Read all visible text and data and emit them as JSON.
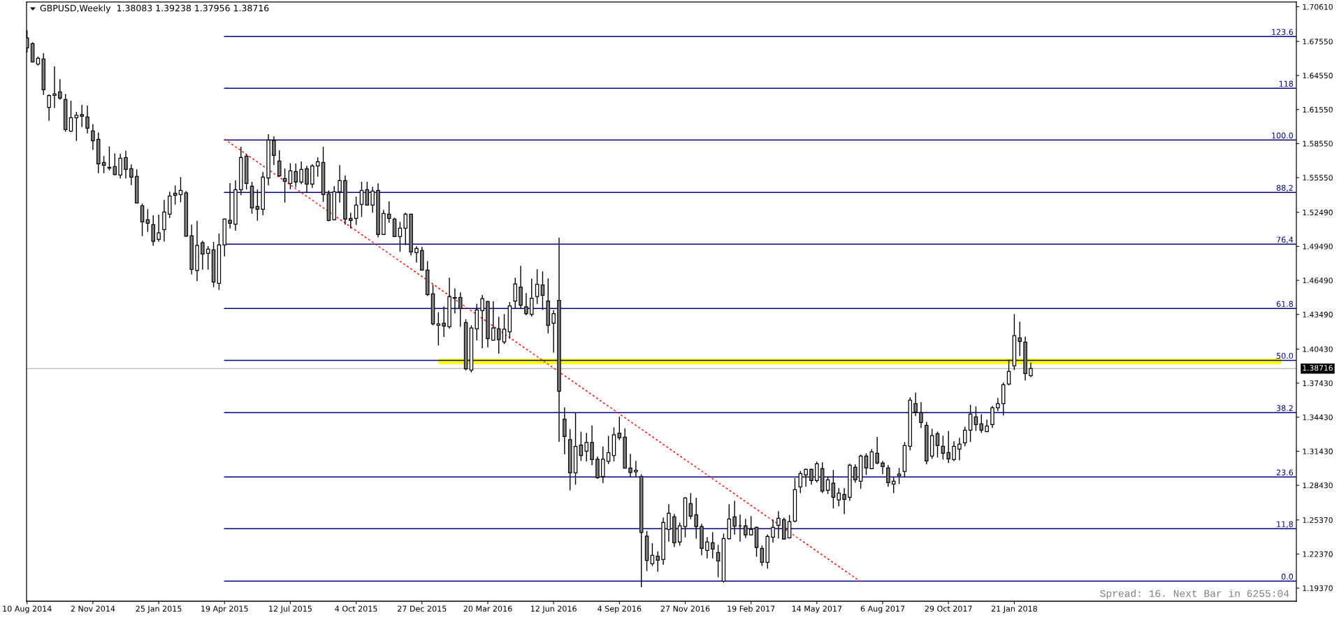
{
  "chart_data": {
    "type": "candlestick",
    "title": "GBPUSD,Weekly  1.38083 1.39238 1.37956 1.38716",
    "annotations": [
      "Spread: 16. Next Bar in 6255:04"
    ],
    "x": [
      "2014-08-10",
      "2014-08-17",
      "2014-08-24",
      "2014-08-31",
      "2014-09-07",
      "2014-09-14",
      "2014-09-21",
      "2014-09-28",
      "2014-10-05",
      "2014-10-12",
      "2014-10-19",
      "2014-10-26",
      "2014-11-02",
      "2014-11-09",
      "2014-11-16",
      "2014-11-23",
      "2014-11-30",
      "2014-12-07",
      "2014-12-14",
      "2014-12-21",
      "2014-12-28",
      "2015-01-04",
      "2015-01-11",
      "2015-01-18",
      "2015-01-25",
      "2015-02-01",
      "2015-02-08",
      "2015-02-15",
      "2015-02-22",
      "2015-03-01",
      "2015-03-08",
      "2015-03-15",
      "2015-03-22",
      "2015-03-29",
      "2015-04-05",
      "2015-04-12",
      "2015-04-19",
      "2015-04-26",
      "2015-05-03",
      "2015-05-10",
      "2015-05-17",
      "2015-05-24",
      "2015-05-31",
      "2015-06-07",
      "2015-06-14",
      "2015-06-21",
      "2015-06-28",
      "2015-07-05",
      "2015-07-12",
      "2015-07-19",
      "2015-07-26",
      "2015-08-02",
      "2015-08-09",
      "2015-08-16",
      "2015-08-23",
      "2015-08-30",
      "2015-09-06",
      "2015-09-13",
      "2015-09-20",
      "2015-09-27",
      "2015-10-04",
      "2015-10-11",
      "2015-10-18",
      "2015-10-25",
      "2015-11-01",
      "2015-11-08",
      "2015-11-15",
      "2015-11-22",
      "2015-11-29",
      "2015-12-06",
      "2015-12-13",
      "2015-12-20",
      "2015-12-27",
      "2016-01-03",
      "2016-01-10",
      "2016-01-17",
      "2016-01-24",
      "2016-01-31",
      "2016-02-07",
      "2016-02-14",
      "2016-02-21",
      "2016-02-28",
      "2016-03-06",
      "2016-03-13",
      "2016-03-20",
      "2016-03-27",
      "2016-04-03",
      "2016-04-10",
      "2016-04-17",
      "2016-04-24",
      "2016-05-01",
      "2016-05-08",
      "2016-05-15",
      "2016-05-22",
      "2016-05-29",
      "2016-06-05",
      "2016-06-12",
      "2016-06-19",
      "2016-06-26",
      "2016-07-03",
      "2016-07-10",
      "2016-07-17",
      "2016-07-24",
      "2016-07-31",
      "2016-08-07",
      "2016-08-14",
      "2016-08-21",
      "2016-08-28",
      "2016-09-04",
      "2016-09-11",
      "2016-09-18",
      "2016-09-25",
      "2016-10-02",
      "2016-10-09",
      "2016-10-16",
      "2016-10-23",
      "2016-10-30",
      "2016-11-06",
      "2016-11-13",
      "2016-11-20",
      "2016-11-27",
      "2016-12-04",
      "2016-12-11",
      "2016-12-18",
      "2016-12-25",
      "2017-01-01",
      "2017-01-08",
      "2017-01-15",
      "2017-01-22",
      "2017-01-29",
      "2017-02-05",
      "2017-02-12",
      "2017-02-19",
      "2017-02-26",
      "2017-03-05",
      "2017-03-12",
      "2017-03-19",
      "2017-03-26",
      "2017-04-02",
      "2017-04-09",
      "2017-04-16",
      "2017-04-23",
      "2017-04-30",
      "2017-05-07",
      "2017-05-14",
      "2017-05-21",
      "2017-05-28",
      "2017-06-04",
      "2017-06-11",
      "2017-06-18",
      "2017-06-25",
      "2017-07-02",
      "2017-07-09",
      "2017-07-16",
      "2017-07-23",
      "2017-07-30",
      "2017-08-06",
      "2017-08-13",
      "2017-08-20",
      "2017-08-27",
      "2017-09-03",
      "2017-09-10",
      "2017-09-17",
      "2017-09-24",
      "2017-10-01",
      "2017-10-08",
      "2017-10-15",
      "2017-10-22",
      "2017-10-29",
      "2017-11-05",
      "2017-11-12",
      "2017-11-19",
      "2017-11-26",
      "2017-12-03",
      "2017-12-10",
      "2017-12-17",
      "2017-12-24",
      "2017-12-31",
      "2018-01-07",
      "2018-01-14",
      "2018-01-21",
      "2018-01-28",
      "2018-02-04",
      "2018-02-11"
    ],
    "ohlc": [
      [
        1.6785,
        1.6853,
        1.6658,
        1.6699
      ],
      [
        1.6736,
        1.6748,
        1.657,
        1.6574
      ],
      [
        1.6555,
        1.6621,
        1.6543,
        1.6607
      ],
      [
        1.66,
        1.6652,
        1.6284,
        1.6329
      ],
      [
        1.6173,
        1.6288,
        1.6056,
        1.6278
      ],
      [
        1.628,
        1.6535,
        1.6169,
        1.6292
      ],
      [
        1.6311,
        1.6422,
        1.6241,
        1.6255
      ],
      [
        1.6243,
        1.6292,
        1.5958,
        1.5978
      ],
      [
        1.5964,
        1.6233,
        1.5958,
        1.6083
      ],
      [
        1.6083,
        1.6134,
        1.5878,
        1.6104
      ],
      [
        1.611,
        1.6196,
        1.6001,
        1.6095
      ],
      [
        1.6089,
        1.619,
        1.5945,
        1.599
      ],
      [
        1.5966,
        1.6027,
        1.5799,
        1.5879
      ],
      [
        1.5892,
        1.5953,
        1.5594,
        1.5676
      ],
      [
        1.5688,
        1.5744,
        1.5594,
        1.5664
      ],
      [
        1.5645,
        1.583,
        1.5619,
        1.5639
      ],
      [
        1.5651,
        1.5768,
        1.5575,
        1.5582
      ],
      [
        1.5577,
        1.5764,
        1.5547,
        1.5725
      ],
      [
        1.5731,
        1.5793,
        1.5547,
        1.5627
      ],
      [
        1.5633,
        1.567,
        1.5489,
        1.5559
      ],
      [
        1.5565,
        1.5627,
        1.5328,
        1.5331
      ],
      [
        1.5306,
        1.5325,
        1.5039,
        1.5165
      ],
      [
        1.5183,
        1.5278,
        1.5076,
        1.5152
      ],
      [
        1.514,
        1.5222,
        1.4955,
        1.4994
      ],
      [
        1.5011,
        1.5228,
        1.499,
        1.5068
      ],
      [
        1.5097,
        1.5358,
        1.4992,
        1.5251
      ],
      [
        1.5232,
        1.543,
        1.52,
        1.5393
      ],
      [
        1.5417,
        1.5485,
        1.5317,
        1.5399
      ],
      [
        1.5405,
        1.5559,
        1.5337,
        1.5442
      ],
      [
        1.5421,
        1.5436,
        1.5035,
        1.5039
      ],
      [
        1.5041,
        1.514,
        1.4702,
        1.4746
      ],
      [
        1.4737,
        1.5173,
        1.4641,
        1.4957
      ],
      [
        1.4982,
        1.4998,
        1.4744,
        1.4881
      ],
      [
        1.4887,
        1.4951,
        1.4744,
        1.4924
      ],
      [
        1.4918,
        1.4988,
        1.4589,
        1.4635
      ],
      [
        1.4622,
        1.5062,
        1.4565,
        1.4961
      ],
      [
        1.4961,
        1.5195,
        1.4861,
        1.5189
      ],
      [
        1.5179,
        1.5506,
        1.5107,
        1.5152
      ],
      [
        1.5144,
        1.553,
        1.5087,
        1.5448
      ],
      [
        1.5448,
        1.5826,
        1.5399,
        1.5732
      ],
      [
        1.5744,
        1.5758,
        1.545,
        1.5504
      ],
      [
        1.5479,
        1.5518,
        1.5237,
        1.5288
      ],
      [
        1.53,
        1.545,
        1.5175,
        1.5276
      ],
      [
        1.5276,
        1.5604,
        1.5224,
        1.5559
      ],
      [
        1.5551,
        1.5937,
        1.5487,
        1.5886
      ],
      [
        1.5882,
        1.5919,
        1.5666,
        1.575
      ],
      [
        1.5701,
        1.5795,
        1.5563,
        1.5569
      ],
      [
        1.5547,
        1.5635,
        1.5335,
        1.5522
      ],
      [
        1.5504,
        1.5682,
        1.5452,
        1.5615
      ],
      [
        1.5609,
        1.5678,
        1.5471,
        1.5516
      ],
      [
        1.5516,
        1.5697,
        1.5496,
        1.5627
      ],
      [
        1.5633,
        1.5658,
        1.5426,
        1.5498
      ],
      [
        1.5498,
        1.5672,
        1.5465,
        1.5658
      ],
      [
        1.5658,
        1.5734,
        1.5563,
        1.5695
      ],
      [
        1.5689,
        1.5826,
        1.5341,
        1.5405
      ],
      [
        1.5411,
        1.5442,
        1.5169,
        1.5177
      ],
      [
        1.5183,
        1.5479,
        1.5177,
        1.543
      ],
      [
        1.543,
        1.5664,
        1.5335,
        1.5528
      ],
      [
        1.5528,
        1.5574,
        1.514,
        1.519
      ],
      [
        1.5196,
        1.5245,
        1.5107,
        1.5177
      ],
      [
        1.5196,
        1.5387,
        1.5138,
        1.5313
      ],
      [
        1.5319,
        1.5518,
        1.5208,
        1.5442
      ],
      [
        1.5448,
        1.5518,
        1.5309,
        1.5313
      ],
      [
        1.5313,
        1.5473,
        1.5245,
        1.5436
      ],
      [
        1.5442,
        1.5504,
        1.5029,
        1.5054
      ],
      [
        1.5054,
        1.527,
        1.5048,
        1.5239
      ],
      [
        1.5233,
        1.5346,
        1.5157,
        1.5196
      ],
      [
        1.519,
        1.5202,
        1.5033,
        1.5035
      ],
      [
        1.5035,
        1.5165,
        1.49,
        1.5109
      ],
      [
        1.5109,
        1.5245,
        1.4959,
        1.5233
      ],
      [
        1.5233,
        1.5237,
        1.4869,
        1.49
      ],
      [
        1.4893,
        1.4949,
        1.4807,
        1.493
      ],
      [
        1.4912,
        1.4943,
        1.4737,
        1.4739
      ],
      [
        1.4739,
        1.4819,
        1.4511,
        1.4524
      ],
      [
        1.453,
        1.461,
        1.4253,
        1.4265
      ],
      [
        1.4253,
        1.4367,
        1.4076,
        1.4265
      ],
      [
        1.4271,
        1.442,
        1.415,
        1.4246
      ],
      [
        1.4241,
        1.4673,
        1.4224,
        1.4505
      ],
      [
        1.4498,
        1.4579,
        1.4356,
        1.4492
      ],
      [
        1.4498,
        1.4543,
        1.4239,
        1.4401
      ],
      [
        1.4277,
        1.4307,
        1.3855,
        1.3869
      ],
      [
        1.3859,
        1.4254,
        1.3838,
        1.4229
      ],
      [
        1.4222,
        1.4441,
        1.412,
        1.4388
      ],
      [
        1.4382,
        1.452,
        1.4052,
        1.4488
      ],
      [
        1.4462,
        1.4469,
        1.4059,
        1.4135
      ],
      [
        1.4122,
        1.4464,
        1.412,
        1.4229
      ],
      [
        1.4222,
        1.4328,
        1.4003,
        1.4127
      ],
      [
        1.4107,
        1.4352,
        1.4088,
        1.4218
      ],
      [
        1.4195,
        1.4458,
        1.4135,
        1.4424
      ],
      [
        1.4467,
        1.4673,
        1.4403,
        1.4617
      ],
      [
        1.459,
        1.4777,
        1.4405,
        1.443
      ],
      [
        1.4416,
        1.4537,
        1.4341,
        1.4356
      ],
      [
        1.435,
        1.4664,
        1.4331,
        1.4492
      ],
      [
        1.4507,
        1.4747,
        1.4441,
        1.4615
      ],
      [
        1.4609,
        1.4728,
        1.4388,
        1.4518
      ],
      [
        1.4467,
        1.4666,
        1.4182,
        1.4252
      ],
      [
        1.4271,
        1.4388,
        1.4012,
        1.4356
      ],
      [
        1.4473,
        1.5025,
        1.3226,
        1.3672
      ],
      [
        1.3426,
        1.353,
        1.3116,
        1.3273
      ],
      [
        1.3245,
        1.3338,
        1.2797,
        1.2952
      ],
      [
        1.2952,
        1.3479,
        1.2848,
        1.3185
      ],
      [
        1.3198,
        1.3315,
        1.3058,
        1.3105
      ],
      [
        1.3143,
        1.3304,
        1.3054,
        1.3221
      ],
      [
        1.3221,
        1.337,
        1.302,
        1.3069
      ],
      [
        1.3073,
        1.3096,
        1.2899,
        1.2909
      ],
      [
        1.292,
        1.3185,
        1.2862,
        1.3073
      ],
      [
        1.3054,
        1.3279,
        1.303,
        1.313
      ],
      [
        1.3105,
        1.3353,
        1.3054,
        1.3289
      ],
      [
        1.3302,
        1.3447,
        1.3241,
        1.3262
      ],
      [
        1.3266,
        1.3345,
        1.299,
        1.2994
      ],
      [
        1.2994,
        1.312,
        1.2913,
        1.2956
      ],
      [
        1.2962,
        1.3058,
        1.2913,
        1.2975
      ],
      [
        1.292,
        1.2939,
        1.1945,
        1.2427
      ],
      [
        1.2395,
        1.244,
        1.2087,
        1.2181
      ],
      [
        1.2152,
        1.2332,
        1.2131,
        1.2226
      ],
      [
        1.2217,
        1.226,
        1.2082,
        1.2182
      ],
      [
        1.2189,
        1.2559,
        1.2143,
        1.2515
      ],
      [
        1.2454,
        1.2676,
        1.2347,
        1.2596
      ],
      [
        1.2565,
        1.2589,
        1.2298,
        1.2337
      ],
      [
        1.2343,
        1.2515,
        1.231,
        1.2485
      ],
      [
        1.2479,
        1.2739,
        1.2384,
        1.2731
      ],
      [
        1.2682,
        1.2774,
        1.2544,
        1.2571
      ],
      [
        1.2583,
        1.2733,
        1.2372,
        1.2479
      ],
      [
        1.2479,
        1.2503,
        1.2226,
        1.2287
      ],
      [
        1.2269,
        1.2386,
        1.2199,
        1.2343
      ],
      [
        1.2337,
        1.2429,
        1.2199,
        1.2281
      ],
      [
        1.225,
        1.2318,
        1.2032,
        1.2176
      ],
      [
        1.1998,
        1.2417,
        1.1985,
        1.2373
      ],
      [
        1.2371,
        1.2676,
        1.2365,
        1.2546
      ],
      [
        1.2565,
        1.2707,
        1.2408,
        1.2483
      ],
      [
        1.2485,
        1.2585,
        1.2347,
        1.2485
      ],
      [
        1.2485,
        1.2546,
        1.2378,
        1.2405
      ],
      [
        1.2405,
        1.2571,
        1.2403,
        1.2454
      ],
      [
        1.2472,
        1.2479,
        1.2213,
        1.2294
      ],
      [
        1.2287,
        1.2312,
        1.2131,
        1.2164
      ],
      [
        1.2164,
        1.241,
        1.2107,
        1.2392
      ],
      [
        1.2386,
        1.254,
        1.2337,
        1.2472
      ],
      [
        1.2491,
        1.2614,
        1.2374,
        1.2552
      ],
      [
        1.254,
        1.2557,
        1.2364,
        1.2368
      ],
      [
        1.238,
        1.2581,
        1.2374,
        1.2522
      ],
      [
        1.2528,
        1.2906,
        1.2515,
        1.2805
      ],
      [
        1.283,
        1.2967,
        1.2774,
        1.2947
      ],
      [
        1.2934,
        1.299,
        1.283,
        1.2984
      ],
      [
        1.2984,
        1.299,
        1.2848,
        1.2885
      ],
      [
        1.2885,
        1.3052,
        1.2867,
        1.3033
      ],
      [
        1.299,
        1.3045,
        1.2774,
        1.2793
      ],
      [
        1.2799,
        1.2922,
        1.2766,
        1.2891
      ],
      [
        1.2861,
        1.2978,
        1.2639,
        1.2737
      ],
      [
        1.2713,
        1.2817,
        1.2657,
        1.2774
      ],
      [
        1.2762,
        1.2817,
        1.2589,
        1.2719
      ],
      [
        1.2737,
        1.3033,
        1.2707,
        1.3021
      ],
      [
        1.3002,
        1.3027,
        1.2866,
        1.2891
      ],
      [
        1.2879,
        1.3113,
        1.2811,
        1.3101
      ],
      [
        1.3101,
        1.3125,
        1.2934,
        1.2996
      ],
      [
        1.299,
        1.3162,
        1.2984,
        1.3138
      ],
      [
        1.3125,
        1.3269,
        1.3027,
        1.3039
      ],
      [
        1.3039,
        1.3057,
        1.2941,
        1.3008
      ],
      [
        1.2996,
        1.3021,
        1.283,
        1.2866
      ],
      [
        1.2854,
        1.291,
        1.2774,
        1.2879
      ],
      [
        1.2928,
        1.2996,
        1.2854,
        1.2941
      ],
      [
        1.2965,
        1.3224,
        1.291,
        1.3193
      ],
      [
        1.3187,
        1.3618,
        1.315,
        1.3594
      ],
      [
        1.3563,
        1.3661,
        1.3452,
        1.3489
      ],
      [
        1.3483,
        1.3575,
        1.3347,
        1.3396
      ],
      [
        1.3372,
        1.3402,
        1.3027,
        1.3058
      ],
      [
        1.3101,
        1.3341,
        1.3076,
        1.328
      ],
      [
        1.3298,
        1.3316,
        1.3088,
        1.3193
      ],
      [
        1.3187,
        1.328,
        1.307,
        1.3125
      ],
      [
        1.3131,
        1.3322,
        1.3039,
        1.3076
      ],
      [
        1.307,
        1.323,
        1.3057,
        1.3187
      ],
      [
        1.3162,
        1.3261,
        1.3063,
        1.3205
      ],
      [
        1.3217,
        1.3359,
        1.3187,
        1.3328
      ],
      [
        1.3328,
        1.3551,
        1.3224,
        1.347
      ],
      [
        1.3446,
        1.3538,
        1.3322,
        1.3378
      ],
      [
        1.3384,
        1.347,
        1.3304,
        1.3328
      ],
      [
        1.3316,
        1.3421,
        1.331,
        1.3365
      ],
      [
        1.3378,
        1.3544,
        1.3347,
        1.3526
      ],
      [
        1.3526,
        1.3612,
        1.3495,
        1.3563
      ],
      [
        1.3563,
        1.3748,
        1.3458,
        1.3729
      ],
      [
        1.3735,
        1.3951,
        1.3723,
        1.3846
      ],
      [
        1.3896,
        1.4352,
        1.3859,
        1.4161
      ],
      [
        1.4142,
        1.4284,
        1.3982,
        1.4111
      ],
      [
        1.4105,
        1.4154,
        1.3766,
        1.3828
      ],
      [
        1.38083,
        1.39238,
        1.37956,
        1.38716
      ]
    ],
    "colors": [
      "#808080",
      "#808080",
      "#ffffff",
      "#808080",
      "#ffffff",
      "#ffffff",
      "#808080",
      "#808080",
      "#ffffff",
      "#ffffff",
      "#808080",
      "#808080",
      "#808080",
      "#808080",
      "#808080",
      "#808080",
      "#808080",
      "#ffffff",
      "#808080",
      "#808080",
      "#808080",
      "#808080",
      "#808080",
      "#808080",
      "#ffffff",
      "#ffffff",
      "#ffffff",
      "#808080",
      "#ffffff",
      "#808080",
      "#808080",
      "#ffffff",
      "#808080",
      "#ffffff",
      "#808080",
      "#ffffff",
      "#ffffff",
      "#808080",
      "#ffffff",
      "#ffffff",
      "#808080",
      "#808080",
      "#808080",
      "#ffffff",
      "#ffffff",
      "#808080",
      "#808080",
      "#808080",
      "#ffffff",
      "#808080",
      "#ffffff",
      "#808080",
      "#ffffff",
      "#ffffff",
      "#808080",
      "#808080",
      "#ffffff",
      "#ffffff",
      "#808080",
      "#808080",
      "#ffffff",
      "#ffffff",
      "#808080",
      "#ffffff",
      "#808080",
      "#ffffff",
      "#808080",
      "#808080",
      "#ffffff",
      "#ffffff",
      "#808080",
      "#ffffff",
      "#808080",
      "#808080",
      "#808080",
      "#ffffff",
      "#808080",
      "#ffffff",
      "#808080",
      "#808080",
      "#808080",
      "#ffffff",
      "#ffffff",
      "#ffffff",
      "#808080",
      "#ffffff",
      "#808080",
      "#ffffff",
      "#ffffff",
      "#ffffff",
      "#808080",
      "#808080",
      "#ffffff",
      "#ffffff",
      "#808080",
      "#808080",
      "#ffffff",
      "#808080",
      "#808080",
      "#808080",
      "#ffffff",
      "#808080",
      "#ffffff",
      "#808080",
      "#808080",
      "#ffffff",
      "#ffffff",
      "#ffffff",
      "#808080",
      "#808080",
      "#808080",
      "#ffffff",
      "#808080",
      "#808080",
      "#ffffff",
      "#808080",
      "#ffffff",
      "#ffffff",
      "#808080",
      "#ffffff",
      "#ffffff",
      "#808080",
      "#808080",
      "#808080",
      "#ffffff",
      "#808080",
      "#808080",
      "#ffffff",
      "#ffffff",
      "#808080",
      "#000000",
      "#808080",
      "#ffffff",
      "#808080",
      "#808080",
      "#ffffff",
      "#ffffff",
      "#ffffff",
      "#808080",
      "#ffffff",
      "#ffffff",
      "#ffffff",
      "#ffffff",
      "#808080",
      "#ffffff",
      "#808080",
      "#ffffff",
      "#808080",
      "#ffffff",
      "#808080",
      "#ffffff",
      "#808080",
      "#ffffff",
      "#808080",
      "#ffffff",
      "#808080",
      "#808080",
      "#808080",
      "#ffffff",
      "#ffffff",
      "#ffffff",
      "#ffffff",
      "#808080",
      "#808080",
      "#808080",
      "#ffffff",
      "#808080",
      "#808080",
      "#808080",
      "#ffffff",
      "#ffffff",
      "#ffffff",
      "#ffffff",
      "#808080",
      "#808080",
      "#ffffff",
      "#ffffff",
      "#ffffff",
      "#ffffff",
      "#ffffff",
      "#ffffff",
      "#808080",
      "#808080",
      "#ffffff"
    ],
    "series": [
      {
        "type": "line",
        "color": "#ffff00",
        "x": [
          "2016-01-17",
          "2018-12-28"
        ],
        "values": [
          null,
          null
        ],
        "lower": [
          1.3912,
          1.3912
        ],
        "upper": [
          1.3957,
          1.3957
        ]
      },
      {
        "type": "line",
        "name": "123.6",
        "color": "#000080",
        "x": [
          "2015-04-19",
          "2019-01-16"
        ],
        "values": [
          1.6798,
          1.6798
        ]
      },
      {
        "type": "line",
        "name": "118",
        "color": "#000080",
        "x": [
          "2015-04-19",
          "2019-01-16"
        ],
        "values": [
          1.6342,
          1.6342
        ]
      },
      {
        "type": "line",
        "name": "100.0",
        "color": "#000080",
        "x": [
          "2015-04-19",
          "2019-01-16"
        ],
        "values": [
          1.5886,
          1.5886
        ]
      },
      {
        "type": "line",
        "name": "88,2",
        "color": "#000080",
        "x": [
          "2015-04-19",
          "2019-01-16"
        ],
        "values": [
          1.5424,
          1.5424
        ]
      },
      {
        "type": "line",
        "name": "76,4",
        "color": "#000080",
        "x": [
          "2015-04-19",
          "2019-01-16"
        ],
        "values": [
          1.4968,
          1.4968
        ]
      },
      {
        "type": "line",
        "name": "61.8",
        "color": "#000080",
        "x": [
          "2015-04-19",
          "2019-01-16"
        ],
        "values": [
          1.4401,
          1.4401
        ]
      },
      {
        "type": "line",
        "name": "50.0",
        "color": "#000080",
        "x": [
          "2015-04-19",
          "2019-01-16"
        ],
        "values": [
          1.3944,
          1.3944
        ]
      },
      {
        "type": "line",
        "name": "38.2",
        "color": "#000080",
        "x": [
          "2015-04-19",
          "2019-01-16"
        ],
        "values": [
          1.3483,
          1.3483
        ]
      },
      {
        "type": "line",
        "name": "23.6",
        "color": "#000080",
        "x": [
          "2015-04-19",
          "2019-01-16"
        ],
        "values": [
          1.2916,
          1.2916
        ]
      },
      {
        "type": "line",
        "name": "11,8",
        "color": "#000080",
        "x": [
          "2015-04-19",
          "2019-01-16"
        ],
        "values": [
          1.246,
          1.246
        ]
      },
      {
        "type": "line",
        "name": "0.0",
        "color": "#000080",
        "x": [
          "2015-04-19",
          "2019-01-16"
        ],
        "values": [
          1.1998,
          1.1998
        ]
      },
      {
        "type": "line",
        "color": "#ff0000",
        "line_style": "dashed",
        "x": [
          "2015-04-19",
          "2017-07-09"
        ],
        "values": [
          1.5894,
          1.1993
        ]
      }
    ],
    "ref_lines": [
      {
        "axis": "y",
        "value": 1.38716,
        "label": "1.38716",
        "color": "#c0c0c0"
      }
    ],
    "xlim": [
      "2014-08-09T08:00",
      "2019-01-16"
    ],
    "xticks": [
      {
        "value": "2014-08-10",
        "label": "10 Aug 2014"
      },
      {
        "value": "2014-11-02",
        "label": "2 Nov 2014"
      },
      {
        "value": "2015-01-25",
        "label": "25 Jan 2015"
      },
      {
        "value": "2015-04-19",
        "label": "19 Apr 2015"
      },
      {
        "value": "2015-07-12",
        "label": "12 Jul 2015"
      },
      {
        "value": "2015-10-04",
        "label": "4 Oct 2015"
      },
      {
        "value": "2015-12-27",
        "label": "27 Dec 2015"
      },
      {
        "value": "2016-03-20",
        "label": "20 Mar 2016"
      },
      {
        "value": "2016-06-12",
        "label": "12 Jun 2016"
      },
      {
        "value": "2016-09-04",
        "label": "4 Sep 2016"
      },
      {
        "value": "2016-11-27",
        "label": "27 Nov 2016"
      },
      {
        "value": "2017-02-19",
        "label": "19 Feb 2017"
      },
      {
        "value": "2017-05-14",
        "label": "14 May 2017"
      },
      {
        "value": "2017-08-06",
        "label": "6 Aug 2017"
      },
      {
        "value": "2017-10-29",
        "label": "29 Oct 2017"
      },
      {
        "value": "2018-01-21",
        "label": "21 Jan 2018"
      }
    ],
    "ylim": [
      1.1821,
      1.7103
    ],
    "yticks": [
      {
        "value": 1.7061,
        "label": "1.70610"
      },
      {
        "value": 1.6755,
        "label": "1.67550"
      },
      {
        "value": 1.6455,
        "label": "1.64550"
      },
      {
        "value": 1.6155,
        "label": "1.61550"
      },
      {
        "value": 1.5855,
        "label": "1.58550"
      },
      {
        "value": 1.5555,
        "label": "1.55550"
      },
      {
        "value": 1.5249,
        "label": "1.52490"
      },
      {
        "value": 1.4949,
        "label": "1.49490"
      },
      {
        "value": 1.4649,
        "label": "1.46490"
      },
      {
        "value": 1.4349,
        "label": "1.43490"
      },
      {
        "value": 1.4043,
        "label": "1.40430"
      },
      {
        "value": 1.3743,
        "label": "1.37430"
      },
      {
        "value": 1.3443,
        "label": "1.34430"
      },
      {
        "value": 1.3143,
        "label": "1.31430"
      },
      {
        "value": 1.2843,
        "label": "1.28430"
      },
      {
        "value": 1.2537,
        "label": "1.25370"
      },
      {
        "value": 1.2237,
        "label": "1.22370"
      },
      {
        "value": 1.1937,
        "label": "1.19370"
      }
    ]
  }
}
